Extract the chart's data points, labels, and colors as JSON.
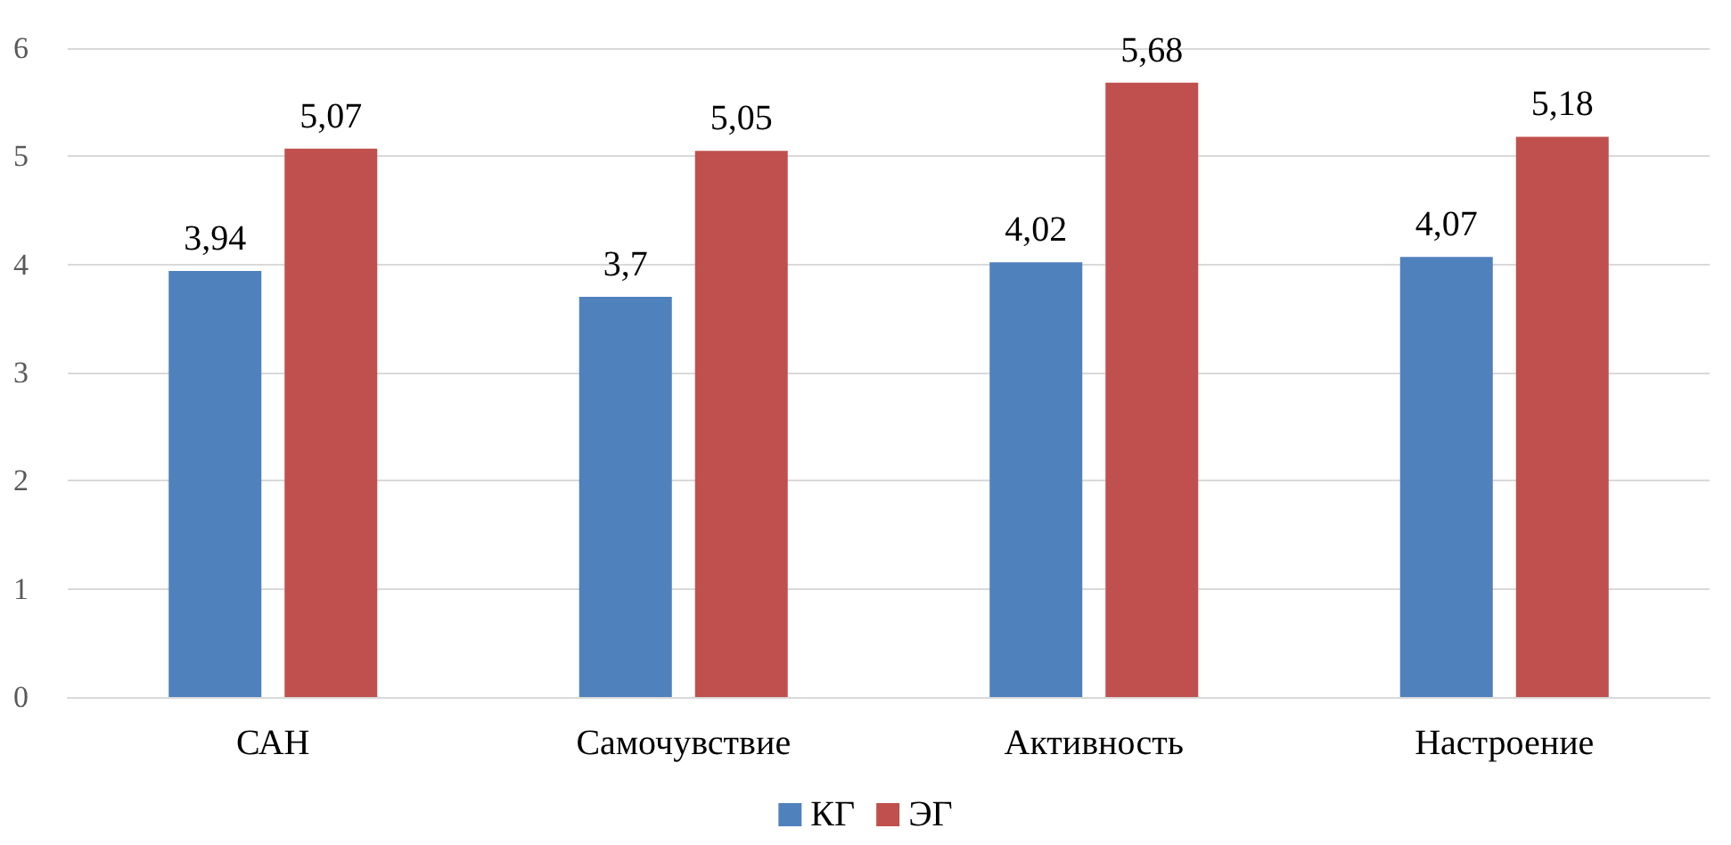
{
  "chart_data": {
    "type": "bar",
    "categories": [
      "САН",
      "Самочувствие",
      "Активность",
      "Настроение"
    ],
    "series": [
      {
        "name": "КГ",
        "color": "#4f81bd",
        "values": [
          3.94,
          3.7,
          4.02,
          4.07
        ],
        "value_labels": [
          "3,94",
          "3,7",
          "4,02",
          "4,07"
        ]
      },
      {
        "name": "ЭГ",
        "color": "#c0504d",
        "values": [
          5.07,
          5.05,
          5.68,
          5.18
        ],
        "value_labels": [
          "5,07",
          "5,05",
          "5,68",
          "5,18"
        ]
      }
    ],
    "ylim": [
      0,
      6
    ],
    "yticks": [
      0,
      1,
      2,
      3,
      4,
      5,
      6
    ],
    "grid": "y",
    "legend": "bottom"
  }
}
